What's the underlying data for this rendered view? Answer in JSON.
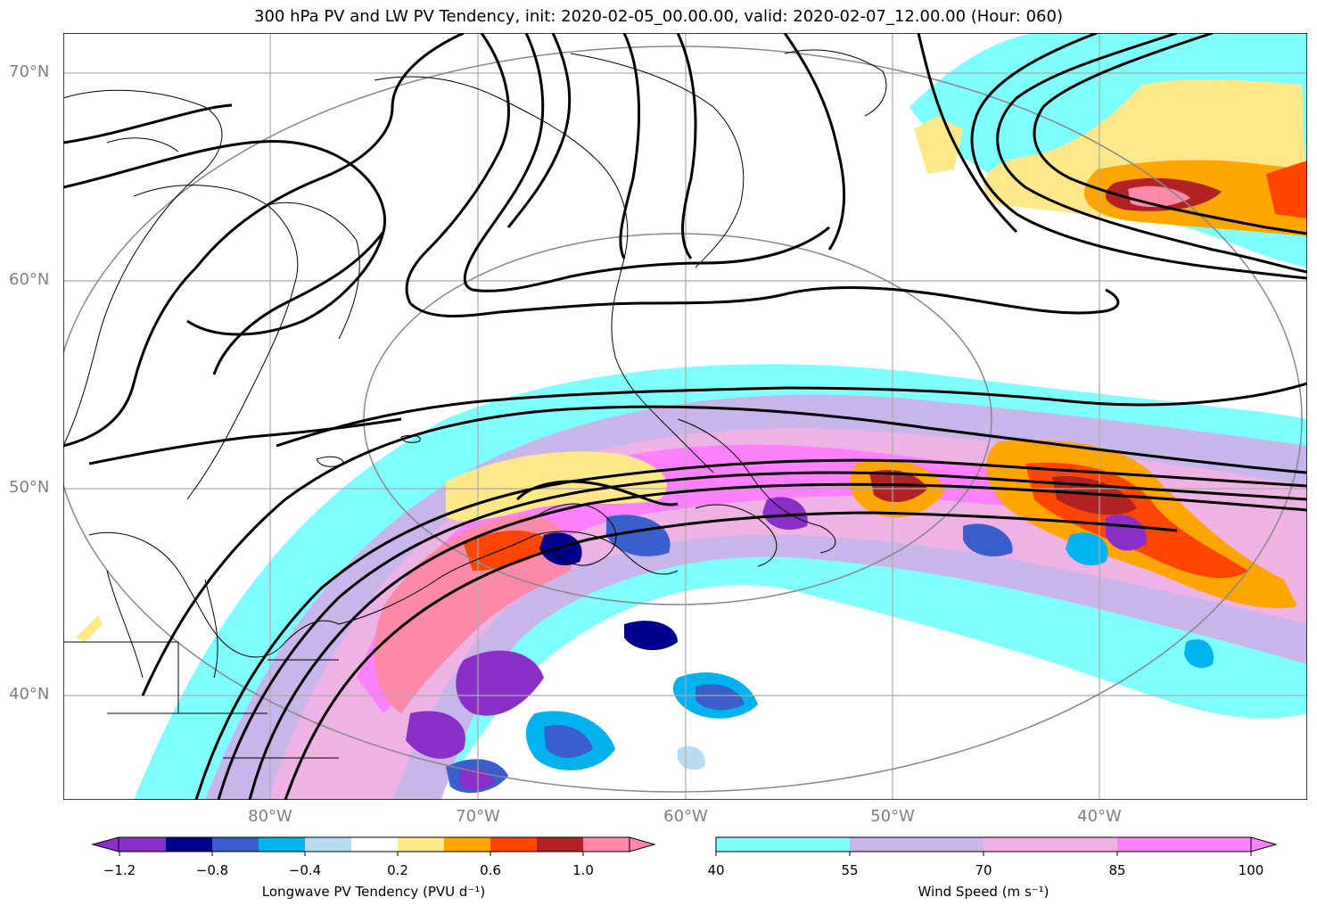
{
  "title": "300 hPa PV and LW PV Tendency, init: 2020-02-05_00.00.00, valid: 2020-02-07_12.00.00 (Hour: 060)",
  "lat_labels": [
    "70°N",
    "60°N",
    "50°N",
    "40°N"
  ],
  "lon_labels": [
    "80°W",
    "70°W",
    "60°W",
    "50°W",
    "40°W"
  ],
  "colorbar_left": {
    "label": "Longwave PV Tendency (PVU d⁻¹)",
    "ticks": [
      "−1.2",
      "−0.8",
      "−0.4",
      "0.2",
      "0.6",
      "1.0"
    ],
    "colors": [
      "#8b2fc9",
      "#00008b",
      "#3a5fcd",
      "#00b2ee",
      "#b9dcf5",
      "#ffffff",
      "#ffe88a",
      "#ffa500",
      "#ff4500",
      "#b22222",
      "#ff89a8"
    ]
  },
  "colorbar_right": {
    "label": "Wind Speed (m s⁻¹)",
    "ticks": [
      "40",
      "55",
      "70",
      "85",
      "100"
    ],
    "colors": [
      "#7fffff",
      "#c8b5ea",
      "#eeb2e4",
      "#ff80ff"
    ]
  }
}
